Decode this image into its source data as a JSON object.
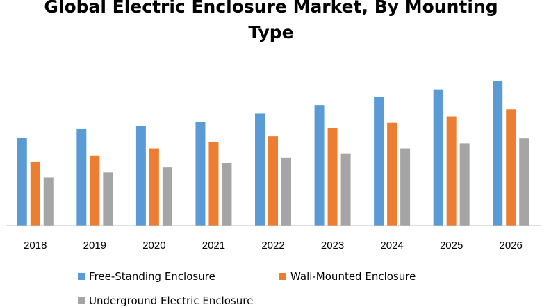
{
  "chart_data": {
    "type": "bar",
    "title": "Global Electric Enclosure Market, By Mounting Type",
    "title_lines": [
      "Global Electric Enclosure Market, By Mounting",
      "Type"
    ],
    "xlabel": "",
    "ylabel": "",
    "categories": [
      "2018",
      "2019",
      "2020",
      "2021",
      "2022",
      "2023",
      "2024",
      "2025",
      "2026"
    ],
    "ylim": [
      0,
      220
    ],
    "grid": false,
    "legend_position": "bottom",
    "series": [
      {
        "name": "Free-Standing Enclosure",
        "color": "#5b9bd5",
        "values": [
          124,
          136,
          140,
          146,
          158,
          170,
          181,
          192,
          204
        ]
      },
      {
        "name": "Wall-Mounted Enclosure",
        "color": "#ed7d31",
        "values": [
          90,
          99,
          109,
          118,
          126,
          137,
          145,
          154,
          164
        ]
      },
      {
        "name": "Underground Electric Enclosure",
        "color": "#a5a5a5",
        "values": [
          68,
          75,
          82,
          89,
          96,
          102,
          109,
          116,
          123
        ]
      }
    ]
  }
}
